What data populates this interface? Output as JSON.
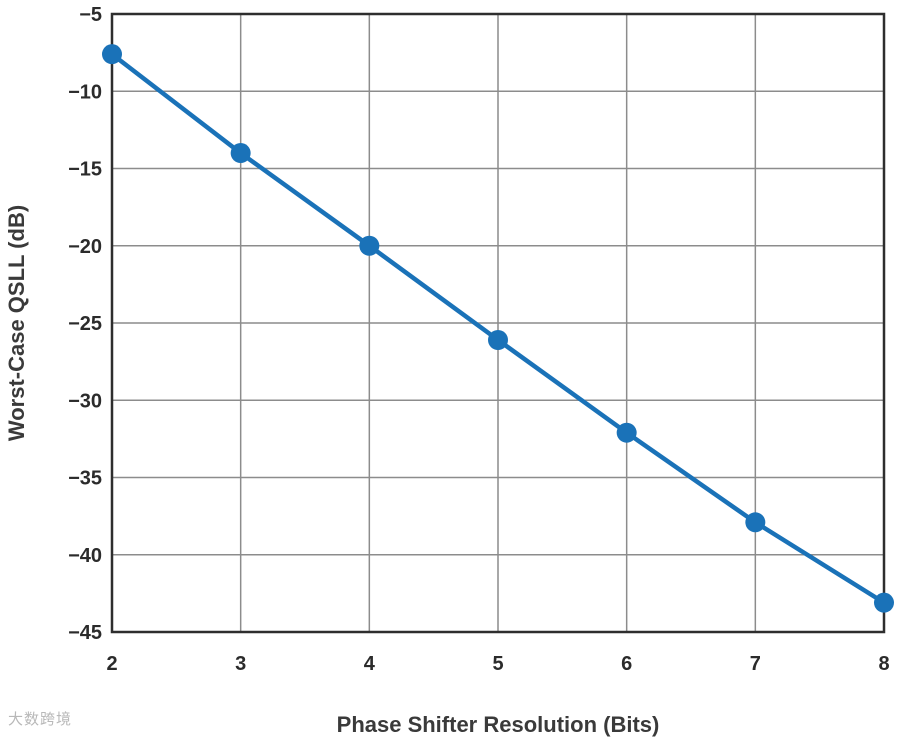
{
  "chart_data": {
    "type": "line",
    "title": "",
    "xlabel": "Phase Shifter Resolution (Bits)",
    "ylabel": "Worst-Case QSLL (dB)",
    "xlim": [
      2,
      8
    ],
    "ylim": [
      -45,
      -5
    ],
    "x_ticks": [
      2,
      3,
      4,
      5,
      6,
      7,
      8
    ],
    "y_ticks": [
      -5,
      -10,
      -15,
      -20,
      -25,
      -30,
      -35,
      -40,
      -45
    ],
    "y_tick_labels": [
      "−5",
      "−10",
      "−15",
      "−20",
      "−25",
      "−30",
      "−35",
      "−40",
      "−45"
    ],
    "grid": true,
    "series": [
      {
        "x": [
          2,
          3,
          4,
          5,
          6,
          7,
          8
        ],
        "y": [
          -7.6,
          -14.0,
          -20.0,
          -26.1,
          -32.1,
          -37.9,
          -43.1
        ],
        "color": "#1a72b8"
      }
    ]
  },
  "watermark": "大数跨境"
}
